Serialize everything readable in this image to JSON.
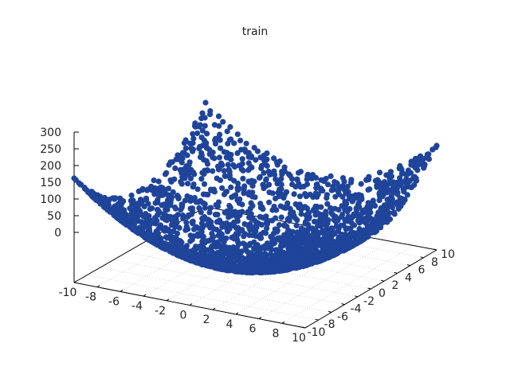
{
  "chart_data": {
    "type": "scatter",
    "subtype": "3d-scatter",
    "title": "train",
    "xlabel": "",
    "ylabel": "",
    "zlabel": "",
    "xlim": [
      -10,
      10
    ],
    "ylim": [
      -10,
      10
    ],
    "zlim": [
      0,
      300
    ],
    "x_ticks": [
      "-10",
      "-8",
      "-6",
      "-4",
      "-2",
      "0",
      "2",
      "4",
      "6",
      "8",
      "10"
    ],
    "y_ticks": [
      "-10",
      "-8",
      "-6",
      "-4",
      "-2",
      "0",
      "2",
      "4",
      "6",
      "8",
      "10"
    ],
    "z_ticks": [
      "0",
      "50",
      "100",
      "150",
      "200",
      "250",
      "300"
    ],
    "grid": true,
    "legend": "none",
    "marker_color": "#1f449a",
    "surface": "z = 1.5 * (x^2 + y^2)",
    "sample_points": [
      {
        "x": -10,
        "y": -10,
        "z": 300
      },
      {
        "x": -10,
        "y": 10,
        "z": 300
      },
      {
        "x": 10,
        "y": -10,
        "z": 300
      },
      {
        "x": 10,
        "y": 10,
        "z": 300
      },
      {
        "x": 0,
        "y": 0,
        "z": 0
      },
      {
        "x": 5,
        "y": 0,
        "z": 38
      },
      {
        "x": 0,
        "y": 5,
        "z": 38
      },
      {
        "x": -5,
        "y": 5,
        "z": 75
      },
      {
        "x": 5,
        "y": -5,
        "z": 75
      },
      {
        "x": 8,
        "y": 8,
        "z": 192
      }
    ]
  }
}
